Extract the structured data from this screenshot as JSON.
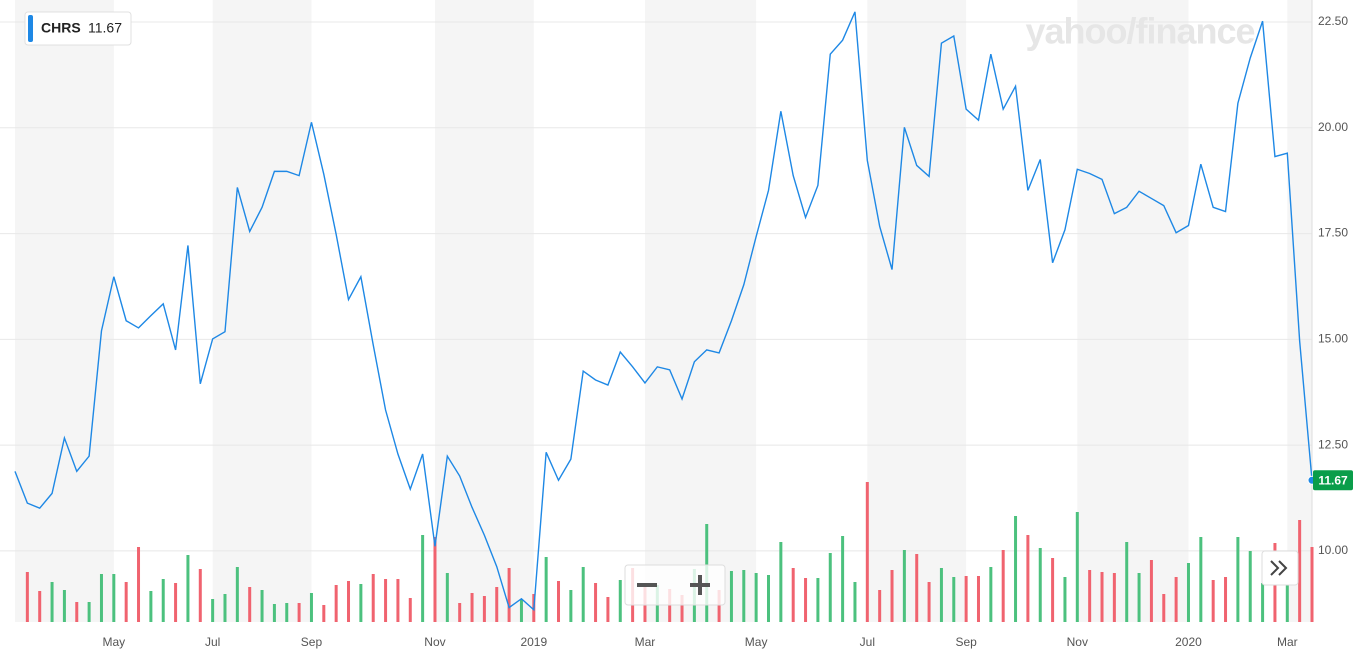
{
  "chart_data": {
    "type": "line",
    "watermark": "yahoo/finance",
    "categories": [
      null,
      null,
      null,
      null,
      null,
      null,
      null,
      null,
      "May",
      null,
      null,
      null,
      null,
      null,
      null,
      null,
      "Jul",
      null,
      null,
      null,
      null,
      null,
      null,
      null,
      "Sep",
      null,
      null,
      null,
      null,
      null,
      null,
      null,
      null,
      null,
      "Nov",
      null,
      null,
      null,
      null,
      null,
      null,
      null,
      "2019",
      null,
      null,
      null,
      null,
      null,
      null,
      null,
      null,
      "Mar",
      null,
      null,
      null,
      null,
      null,
      null,
      null,
      null,
      "May",
      null,
      null,
      null,
      null,
      null,
      null,
      null,
      null,
      "Jul",
      null,
      null,
      null,
      null,
      null,
      null,
      null,
      "Sep",
      null,
      null,
      null,
      null,
      null,
      null,
      null,
      null,
      "Nov",
      null,
      null,
      null,
      null,
      null,
      null,
      null,
      null,
      "2020",
      null,
      null,
      null,
      null,
      null,
      null,
      null,
      "Mar",
      null,
      null
    ],
    "series": [
      {
        "name": "CHRS",
        "color": "#1e88e5",
        "values": [
          11.88,
          11.13,
          11.01,
          11.36,
          12.67,
          11.88,
          12.24,
          15.2,
          16.48,
          15.44,
          15.27,
          15.56,
          15.84,
          14.75,
          17.22,
          13.95,
          15.01,
          15.18,
          18.59,
          17.55,
          18.12,
          18.97,
          18.97,
          18.87,
          20.13,
          18.9,
          17.48,
          15.94,
          16.48,
          14.87,
          13.33,
          12.29,
          11.46,
          12.29,
          10.11,
          12.24,
          11.77,
          11.03,
          10.37,
          9.63,
          8.66,
          8.87,
          8.61,
          12.33,
          11.67,
          12.17,
          14.25,
          14.04,
          13.92,
          14.7,
          14.35,
          13.97,
          14.35,
          14.28,
          13.59,
          14.47,
          14.75,
          14.68,
          15.44,
          16.29,
          17.43,
          18.52,
          20.39,
          18.87,
          17.88,
          18.64,
          21.74,
          22.07,
          22.74,
          19.23,
          17.67,
          16.65,
          20.01,
          19.11,
          18.85,
          22.0,
          22.17,
          20.44,
          20.18,
          21.74,
          20.44,
          20.98,
          18.52,
          19.25,
          16.81,
          17.59,
          19.02,
          18.92,
          18.78,
          17.97,
          18.12,
          18.5,
          18.33,
          18.16,
          17.52,
          17.69,
          19.14,
          18.12,
          18.02,
          20.58,
          21.65,
          22.52,
          19.32,
          19.4,
          14.96,
          11.67
        ]
      }
    ],
    "volume": [
      null,
      50,
      31,
      40,
      32,
      20,
      20,
      48,
      48,
      40,
      75,
      31,
      43,
      39,
      67,
      53,
      23,
      28,
      55,
      35,
      32,
      18,
      19,
      19,
      29,
      17,
      37,
      41,
      38,
      48,
      43,
      43,
      24,
      87,
      85,
      49,
      19,
      29,
      26,
      35,
      54,
      22,
      28,
      65,
      41,
      32,
      55,
      39,
      25,
      42,
      54,
      39,
      37,
      33,
      27,
      53,
      98,
      32,
      51,
      52,
      49,
      47,
      80,
      54,
      44,
      44,
      69,
      86,
      40,
      140,
      32,
      52,
      72,
      68,
      40,
      54,
      45,
      46,
      46,
      55,
      72,
      106,
      87,
      74,
      64,
      45,
      110,
      52,
      50,
      49,
      80,
      49,
      62,
      28,
      45,
      59,
      85,
      42,
      45,
      85,
      71,
      39,
      79,
      40,
      102,
      75
    ],
    "volume_up_color": "#4cc17e",
    "volume_down_color": "#f0636f",
    "y2lim": [
      0,
      160
    ],
    "ylim": [
      8.32,
      23.02
    ],
    "yticks": [
      {
        "value": 10,
        "label": "10.00"
      },
      {
        "value": 12.5,
        "label": "12.50"
      },
      {
        "value": 15,
        "label": "15.00"
      },
      {
        "value": 17.5,
        "label": "17.50"
      },
      {
        "value": 20,
        "label": "20.00"
      },
      {
        "value": 22.5,
        "label": "22.50"
      }
    ],
    "grid": true
  }
}
